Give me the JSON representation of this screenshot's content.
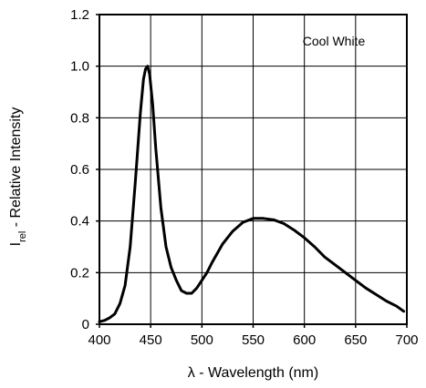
{
  "chart_data": {
    "type": "line",
    "annotation": "Cool White",
    "xlabel": {
      "prefix": "λ",
      "text": " - Wavelength (nm)"
    },
    "ylabel": {
      "symbol": "I",
      "subscript": "rel",
      "text": " - Relative Intensity"
    },
    "xlim": [
      400,
      700
    ],
    "ylim": [
      0,
      1.2
    ],
    "xticks": [
      "400",
      "450",
      "500",
      "550",
      "600",
      "650",
      "700"
    ],
    "yticks": [
      "0",
      "0.2",
      "0.4",
      "0.6",
      "0.8",
      "1.0",
      "1.2"
    ],
    "grid": true,
    "series": [
      {
        "color": "#000000",
        "x": [
          400,
          405,
          410,
          415,
          420,
          425,
          430,
          435,
          440,
          443,
          445,
          447,
          449,
          452,
          455,
          460,
          465,
          470,
          475,
          480,
          485,
          490,
          495,
          500,
          505,
          510,
          520,
          530,
          540,
          550,
          560,
          570,
          580,
          590,
          600,
          610,
          620,
          630,
          640,
          650,
          660,
          670,
          680,
          690,
          697
        ],
        "y": [
          0.01,
          0.015,
          0.025,
          0.04,
          0.08,
          0.15,
          0.3,
          0.55,
          0.82,
          0.95,
          0.99,
          1.0,
          0.97,
          0.85,
          0.68,
          0.45,
          0.3,
          0.22,
          0.17,
          0.13,
          0.12,
          0.12,
          0.14,
          0.17,
          0.2,
          0.24,
          0.31,
          0.36,
          0.395,
          0.41,
          0.41,
          0.405,
          0.39,
          0.365,
          0.335,
          0.3,
          0.26,
          0.23,
          0.2,
          0.17,
          0.14,
          0.115,
          0.09,
          0.07,
          0.05
        ]
      }
    ]
  }
}
